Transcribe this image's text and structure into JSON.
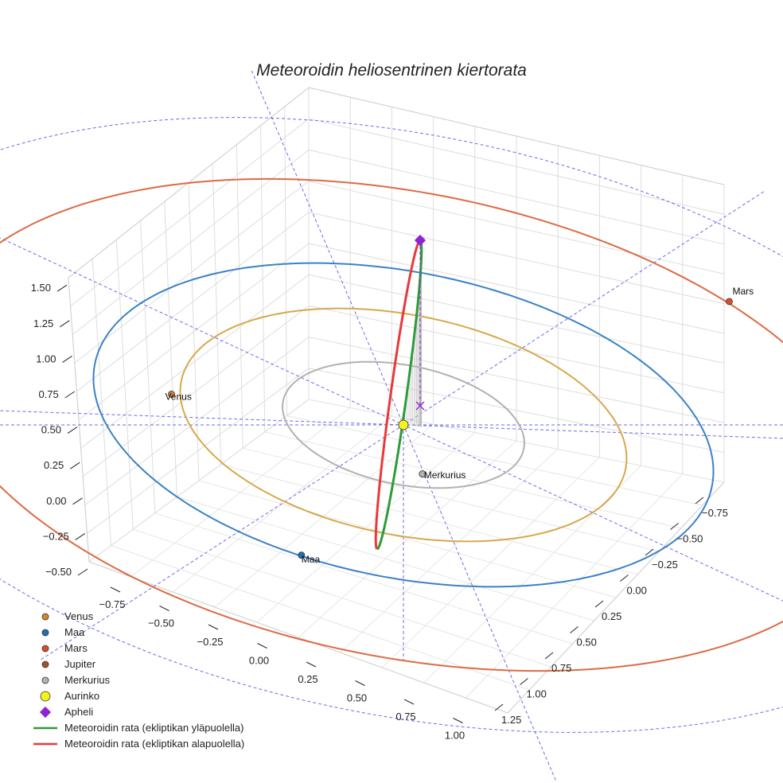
{
  "chart_data": {
    "type": "scatter",
    "projection": "3d",
    "title": "Meteoroidin heliosentrinen kiertorata",
    "xlabel": "",
    "ylabel": "",
    "zlabel": "",
    "axes": {
      "x_ticks": [
        "−0.75",
        "−0.50",
        "−0.25",
        "0.00",
        "0.25",
        "0.50",
        "0.75",
        "1.00"
      ],
      "y_ticks": [
        "−0.75",
        "−0.50",
        "−0.25",
        "0.00",
        "0.25",
        "0.50",
        "0.75",
        "1.00",
        "1.25"
      ],
      "z_ticks": [
        "−0.50",
        "−0.25",
        "0.00",
        "0.25",
        "0.50",
        "0.75",
        "1.00",
        "1.25",
        "1.50"
      ],
      "grid": true,
      "legend_position": "bottom-left"
    },
    "orbits": [
      {
        "name": "Merkurius",
        "radius": 0.39,
        "color": "#b4b0ae"
      },
      {
        "name": "Venus",
        "radius": 0.72,
        "color": "#d8a84c"
      },
      {
        "name": "Maa",
        "radius": 1.0,
        "color": "#3b82c4"
      },
      {
        "name": "Mars",
        "radius": 1.52,
        "color": "#dc6b45"
      }
    ],
    "bodies": [
      {
        "name": "Venus",
        "label": "Venus",
        "x": -0.62,
        "y": 0.42,
        "z": 0,
        "color": "#d4862c"
      },
      {
        "name": "Maa",
        "label": "Maa",
        "x": 0.22,
        "y": 0.97,
        "z": 0,
        "color": "#1f6fb4"
      },
      {
        "name": "Mars",
        "label": "Mars",
        "x": 0.3,
        "y": -1.5,
        "z": 0,
        "color": "#d5502a"
      },
      {
        "name": "Merkurius",
        "label": "Merkurius",
        "x": 0.21,
        "y": 0.22,
        "z": 0,
        "color": "#b8b0ae"
      },
      {
        "name": "Aurinko",
        "label": "",
        "x": 0,
        "y": 0,
        "z": 0,
        "color": "#f5f51e"
      }
    ],
    "aphelion": {
      "name": "Apheli",
      "x": 0.12,
      "y": -0.06,
      "z": 1.55,
      "color": "#8e24d4"
    },
    "meteoroid_orbit": {
      "above": {
        "name": "Meteoroidin rata (ekliptikan yläpuolella)",
        "color": "#2e9a3a"
      },
      "below": {
        "name": "Meteoroidin rata (ekliptikan alapuolella)",
        "color": "#e8393a"
      }
    },
    "legend": [
      {
        "label": "Venus",
        "marker": "circle",
        "color": "#d4862c"
      },
      {
        "label": "Maa",
        "marker": "circle",
        "color": "#1f6fb4"
      },
      {
        "label": "Mars",
        "marker": "circle",
        "color": "#d5502a"
      },
      {
        "label": "Jupiter",
        "marker": "circle",
        "color": "#a0522d"
      },
      {
        "label": "Merkurius",
        "marker": "circle",
        "color": "#b8b0ae"
      },
      {
        "label": "Aurinko",
        "marker": "big-circle",
        "color": "#f5f51e"
      },
      {
        "label": "Apheli",
        "marker": "diamond",
        "color": "#8e24d4"
      },
      {
        "label": "Meteoroidin rata (ekliptikan yläpuolella)",
        "marker": "line",
        "color": "#2e9a3a"
      },
      {
        "label": "Meteoroidin rata (ekliptikan alapuolella)",
        "marker": "line",
        "color": "#e8393a"
      }
    ]
  }
}
